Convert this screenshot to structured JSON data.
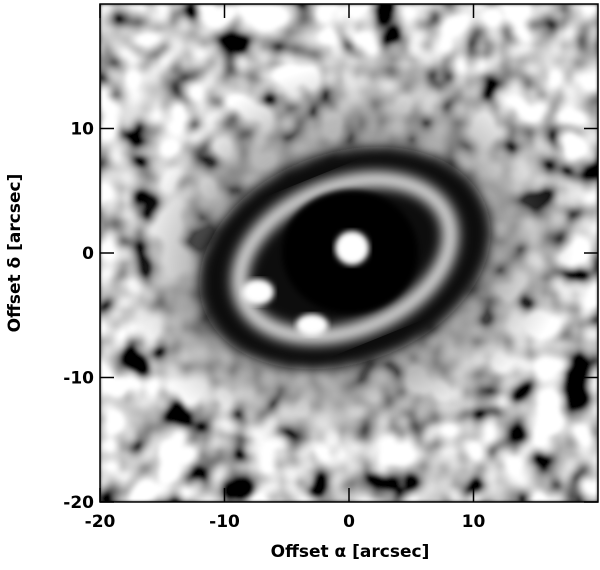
{
  "chart_data": {
    "type": "image",
    "xlabel": "Offset α [arcsec]",
    "ylabel": "Offset δ [arcsec]",
    "xlim": [
      -20,
      20
    ],
    "ylim": [
      -20,
      20
    ],
    "xticks": [
      -20,
      -10,
      0,
      10
    ],
    "yticks": [
      -20,
      -10,
      0,
      10
    ]
  }
}
